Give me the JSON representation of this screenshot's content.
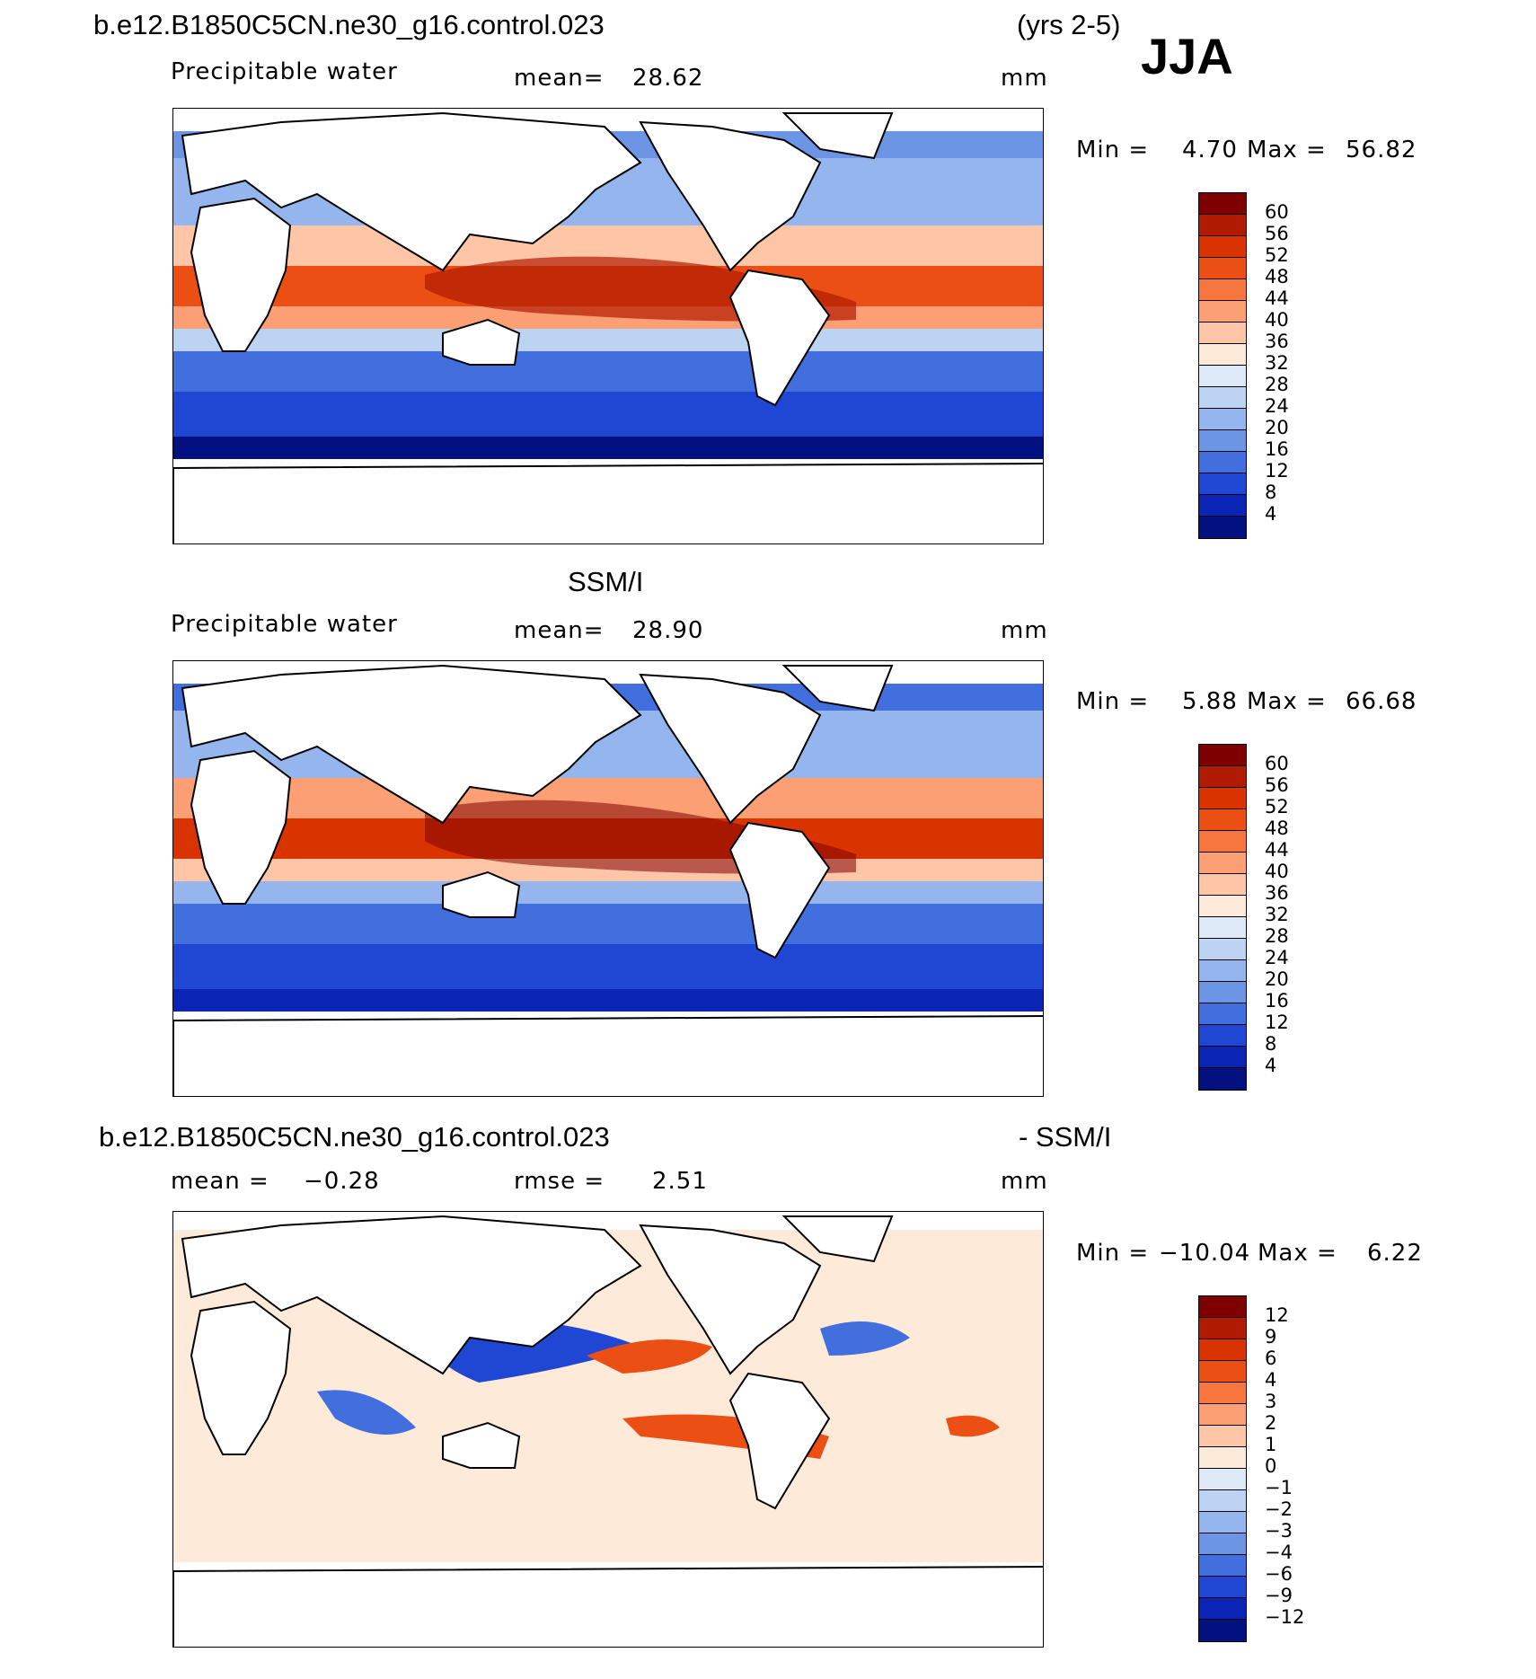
{
  "season": "JJA",
  "panel1": {
    "case": "b.e12.B1850C5CN.ne30_g16.control.023",
    "years": "(yrs 2-5)",
    "variable": "Precipitable water",
    "mean_label": "mean=",
    "mean_value": "28.62",
    "units": "mm",
    "min_label": "Min =",
    "min_value": "4.70",
    "max_label": "Max =",
    "max_value": "56.82",
    "scale": [
      60,
      56,
      52,
      48,
      44,
      40,
      36,
      32,
      28,
      24,
      20,
      16,
      12,
      8,
      4
    ]
  },
  "panel2": {
    "title": "SSM/I",
    "variable": "Precipitable water",
    "mean_label": "mean=",
    "mean_value": "28.90",
    "units": "mm",
    "min_label": "Min =",
    "min_value": "5.88",
    "max_label": "Max =",
    "max_value": "66.68",
    "scale": [
      60,
      56,
      52,
      48,
      44,
      40,
      36,
      32,
      28,
      24,
      20,
      16,
      12,
      8,
      4
    ]
  },
  "panel3": {
    "case": "b.e12.B1850C5CN.ne30_g16.control.023",
    "suffix": "- SSM/I",
    "mean_label": "mean =",
    "mean_value": "−0.28",
    "rmse_label": "rmse =",
    "rmse_value": "2.51",
    "units": "mm",
    "min_label": "Min =",
    "min_value": "−10.04",
    "max_label": "Max =",
    "max_value": "6.22",
    "scale": [
      "12",
      "9",
      "6",
      "4",
      "3",
      "2",
      "1",
      "0",
      "−1",
      "−2",
      "−3",
      "−4",
      "−6",
      "−9",
      "−12"
    ]
  },
  "colors": {
    "seq": [
      "#7f0000",
      "#b01a00",
      "#d93400",
      "#ec4f14",
      "#f7763f",
      "#fc9f74",
      "#fec6a6",
      "#feead8",
      "#dde9f7",
      "#bdd3f4",
      "#95b5ee",
      "#6c95e6",
      "#416fde",
      "#1f47d3",
      "#0a25b3",
      "#021080"
    ]
  }
}
